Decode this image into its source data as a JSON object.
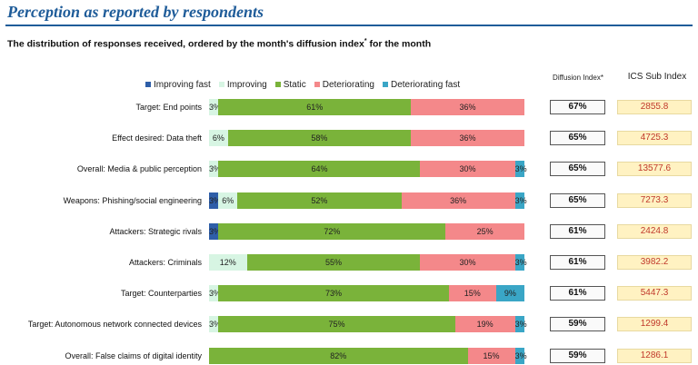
{
  "title": "Perception as reported by respondents",
  "subtitle": "The distribution of responses received, ordered by the month's diffusion index",
  "subtitle_sup": "*",
  "subtitle_tail": " for the month",
  "col_headers": {
    "diffusion": "Diffusion Index*",
    "ics": "ICS Sub Index"
  },
  "colors": {
    "improving_fast": "#2e5ea8",
    "improving": "#d7f5e3",
    "static": "#7ab33a",
    "deteriorating": "#f4888a",
    "deteriorating_fast": "#3aa6c6"
  },
  "chart_data": {
    "type": "bar",
    "orientation": "horizontal",
    "stacked": true,
    "normalized_percent": true,
    "categories": [
      "Target: End points",
      "Effect desired: Data theft",
      "Overall: Media & public perception",
      "Weapons: Phishing/social engineering",
      "Attackers: Strategic rivals",
      "Attackers: Criminals",
      "Target: Counterparties",
      "Target: Autonomous network connected devices",
      "Overall: False claims of digital identity"
    ],
    "series": [
      {
        "name": "Improving fast",
        "color": "#2e5ea8",
        "values": [
          0,
          0,
          0,
          3,
          3,
          0,
          0,
          0,
          0
        ],
        "labels": [
          "",
          "",
          "",
          "3%",
          "3%",
          "",
          "",
          "",
          ""
        ]
      },
      {
        "name": "Improving",
        "color": "#d7f5e3",
        "values": [
          3,
          6,
          3,
          6,
          0,
          12,
          3,
          3,
          0
        ],
        "labels": [
          "3%",
          "6%",
          "3%",
          "6%",
          "",
          "12%",
          "3%",
          "3%",
          ""
        ]
      },
      {
        "name": "Static",
        "color": "#7ab33a",
        "values": [
          61,
          58,
          64,
          52,
          72,
          55,
          73,
          75,
          82
        ],
        "labels": [
          "61%",
          "58%",
          "64%",
          "52%",
          "72%",
          "55%",
          "73%",
          "75%",
          "82%"
        ]
      },
      {
        "name": "Deteriorating",
        "color": "#f4888a",
        "values": [
          36,
          36,
          30,
          36,
          25,
          30,
          15,
          19,
          15
        ],
        "labels": [
          "36%",
          "36%",
          "30%",
          "36%",
          "25%",
          "30%",
          "15%",
          "19%",
          "15%"
        ]
      },
      {
        "name": "Deteriorating fast",
        "color": "#3aa6c6",
        "values": [
          0,
          0,
          3,
          3,
          0,
          3,
          9,
          3,
          3
        ],
        "labels": [
          "",
          "",
          "3%",
          "3%",
          "",
          "3%",
          "9%",
          "3%",
          "3%"
        ]
      }
    ],
    "diffusion_index": [
      "67%",
      "65%",
      "65%",
      "65%",
      "61%",
      "61%",
      "61%",
      "59%",
      "59%"
    ],
    "ics_sub_index": [
      "2855.8",
      "4725.3",
      "13577.6",
      "7273.3",
      "2424.8",
      "3982.2",
      "5447.3",
      "1299.4",
      "1286.1"
    ],
    "legend_placement": "top",
    "grid": false
  }
}
